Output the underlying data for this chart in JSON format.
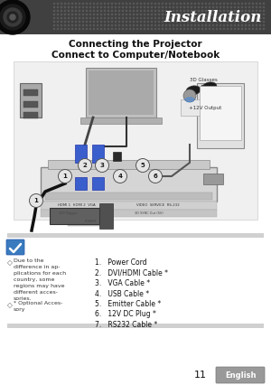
{
  "title_text": "Installation",
  "heading1": "Connecting the Projector",
  "heading2": "Connect to Computer/Notebook",
  "note_bullet1_lines": [
    "Due to the",
    "difference in ap-",
    "plications for each",
    "country, some",
    "regions may have",
    "different acces-",
    "sories."
  ],
  "note_bullet2_lines": [
    "* Optional Acces-",
    "sory"
  ],
  "items": [
    "1.   Power Cord",
    "2.   DVI/HDMI Cable *",
    "3.   VGA Cable *",
    "4.   USB Cable *",
    "5.   Emitter Cable *",
    "6.   12V DC Plug *",
    "7.   RS232 Cable *"
  ],
  "page_number": "11",
  "lang_label": "English",
  "header_bg": "#404040",
  "title_color": "#ffffff",
  "body_bg": "#ffffff",
  "heading_color": "#111111",
  "footer_bar_bg": "#999999",
  "footer_text_color": "#ffffff",
  "sep_color": "#bbbbbb",
  "note_text_color": "#333333",
  "item_text_color": "#111111",
  "check_bg": "#3a7abf",
  "diagram_bg": "#f0f0f0",
  "diagram_border": "#cccccc",
  "proj_color": "#d2d2d2",
  "proj_border": "#888888",
  "laptop_color": "#c5c5c5",
  "vga_color": "#3a5fcc",
  "cable_color": "#222222",
  "gray_box": "#bbbbbb"
}
